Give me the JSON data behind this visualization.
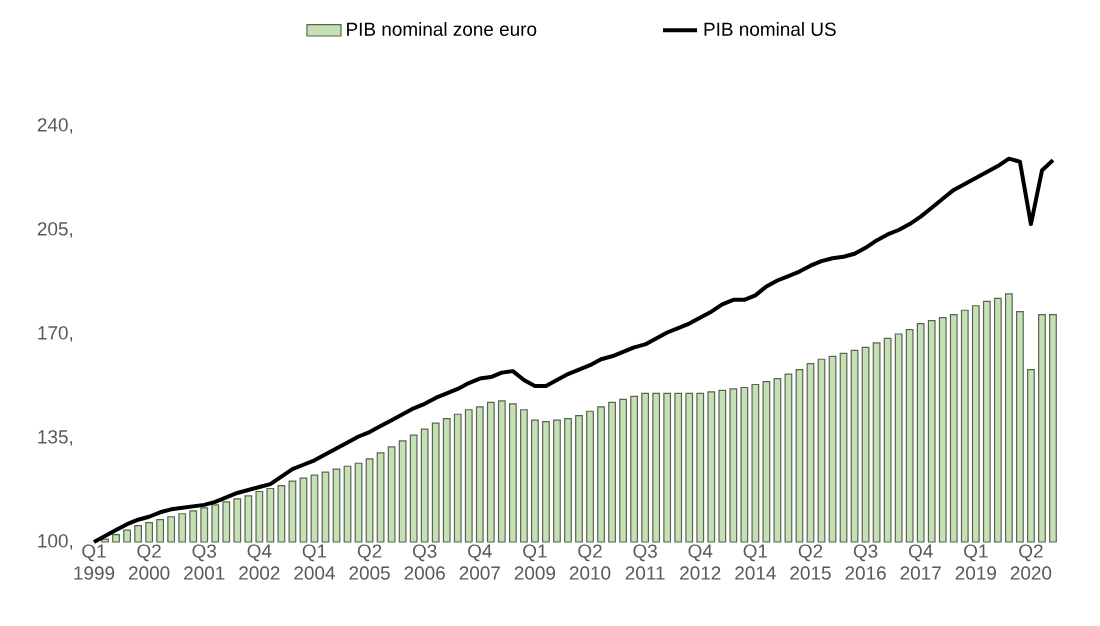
{
  "chart_data": {
    "type": "bar",
    "categories": [
      "Q1 1999",
      null,
      null,
      null,
      null,
      "Q2 2000",
      null,
      null,
      null,
      null,
      "Q3 2001",
      null,
      null,
      null,
      null,
      "Q4 2002",
      null,
      null,
      null,
      null,
      "Q1 2004",
      null,
      null,
      null,
      null,
      "Q2 2005",
      null,
      null,
      null,
      null,
      "Q3 2006",
      null,
      null,
      null,
      null,
      "Q4 2007",
      null,
      null,
      null,
      null,
      "Q1 2009",
      null,
      null,
      null,
      null,
      "Q2 2010",
      null,
      null,
      null,
      null,
      "Q3 2011",
      null,
      null,
      null,
      null,
      "Q4 2012",
      null,
      null,
      null,
      null,
      "Q1 2014",
      null,
      null,
      null,
      null,
      "Q2 2015",
      null,
      null,
      null,
      null,
      "Q3 2016",
      null,
      null,
      null,
      null,
      "Q4 2017",
      null,
      null,
      null,
      null,
      "Q1 2019",
      null,
      null,
      null,
      null,
      "Q2 2020",
      null,
      null
    ],
    "series": [
      {
        "name": "PIB nominal zone euro",
        "color": "#c5e0b4",
        "values": [
          100,
          101,
          102.5,
          104,
          105.5,
          106.5,
          107.5,
          108.5,
          109.5,
          110.5,
          111.5,
          112.5,
          113.5,
          114.5,
          115.5,
          117,
          118,
          119,
          120.5,
          121.5,
          122.5,
          123.5,
          124.5,
          125.5,
          126.5,
          128,
          130,
          132,
          134,
          136,
          138,
          140,
          141.5,
          143,
          144.5,
          145.5,
          147,
          147.5,
          146.5,
          144.5,
          141,
          140.5,
          141,
          141.5,
          142.5,
          144,
          145.5,
          147,
          148,
          149,
          150,
          150,
          150,
          150,
          150,
          150,
          150.5,
          151,
          151.5,
          152,
          153,
          154,
          155,
          156.5,
          158,
          160,
          161.5,
          162.5,
          163.5,
          164.5,
          165.5,
          167,
          168.5,
          170,
          171.5,
          173.5,
          174.5,
          175.5,
          176.5,
          178,
          179.5,
          181,
          182,
          183.5,
          177.5,
          158,
          176.5,
          176.5
        ]
      },
      {
        "name": "PIB nominal US",
        "type": "line",
        "color": "#000000",
        "values": [
          100,
          102,
          104,
          106,
          107.5,
          108.5,
          110,
          111,
          111.5,
          112,
          112.5,
          113.5,
          115,
          116.5,
          117.5,
          118.5,
          119.5,
          122,
          124.5,
          126,
          127.5,
          129.5,
          131.5,
          133.5,
          135.5,
          137,
          139,
          141,
          143,
          145,
          146.5,
          148.5,
          150,
          151.5,
          153.5,
          155,
          155.5,
          157,
          157.5,
          154.5,
          152.5,
          152.5,
          154.5,
          156.5,
          158,
          159.5,
          161.5,
          162.5,
          164,
          165.5,
          166.5,
          168.5,
          170.5,
          172,
          173.5,
          175.5,
          177.5,
          180,
          181.5,
          181.5,
          183,
          186,
          188,
          189.5,
          191,
          193,
          194.5,
          195.5,
          196,
          197,
          199,
          201.5,
          203.5,
          205,
          207,
          209.5,
          212.5,
          215.5,
          218.5,
          220.5,
          222.5,
          224.5,
          226.5,
          229,
          228,
          207,
          225,
          228.5
        ]
      }
    ],
    "ylim": [
      100,
      240
    ],
    "yticks": [
      {
        "value": 100,
        "label": "100,"
      },
      {
        "value": 135,
        "label": "135,"
      },
      {
        "value": 170,
        "label": "170,"
      },
      {
        "value": 205,
        "label": "205,"
      },
      {
        "value": 240,
        "label": "240,"
      }
    ],
    "legend": "top",
    "grid": false,
    "marker": "none",
    "line_style": "solid"
  }
}
